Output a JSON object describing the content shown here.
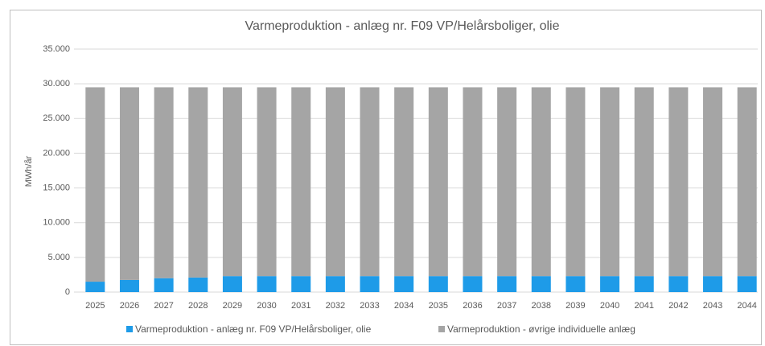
{
  "chart_data": {
    "type": "stacked_bar",
    "title": "Varmeproduktion - anlæg nr. F09 VP/Helårsboliger, olie",
    "y_label": "MWh/år",
    "categories": [
      "2025",
      "2026",
      "2027",
      "2028",
      "2029",
      "2030",
      "2031",
      "2032",
      "2033",
      "2034",
      "2035",
      "2036",
      "2037",
      "2038",
      "2039",
      "2040",
      "2041",
      "2042",
      "2043",
      "2044"
    ],
    "series": [
      {
        "name": "Varmeproduktion - anlæg nr. F09 VP/Helårsboliger, olie",
        "color": "#1e9be8",
        "values": [
          1500,
          1750,
          2000,
          2100,
          2300,
          2300,
          2300,
          2300,
          2300,
          2300,
          2300,
          2300,
          2300,
          2300,
          2300,
          2300,
          2300,
          2300,
          2300,
          2300
        ]
      },
      {
        "name": "Varmeproduktion - øvrige individuelle anlæg",
        "color": "#a5a5a5",
        "values": [
          28000,
          27750,
          27500,
          27400,
          27200,
          27200,
          27200,
          27200,
          27200,
          27200,
          27200,
          27200,
          27200,
          27200,
          27200,
          27200,
          27200,
          27200,
          27200,
          27200
        ]
      }
    ],
    "ylim": [
      0,
      35000
    ],
    "yticks": [
      0,
      {
        "value": 5000,
        "label": "5.000"
      },
      {
        "value": 10000,
        "label": "10.000"
      },
      {
        "value": 15000,
        "label": "15.000"
      },
      {
        "value": 20000,
        "label": "20.000"
      },
      {
        "value": 25000,
        "label": "25.000"
      },
      {
        "value": 30000,
        "label": "30.000"
      },
      {
        "value": 35000,
        "label": "35.000"
      }
    ],
    "grid": true,
    "legend": "bottom"
  }
}
